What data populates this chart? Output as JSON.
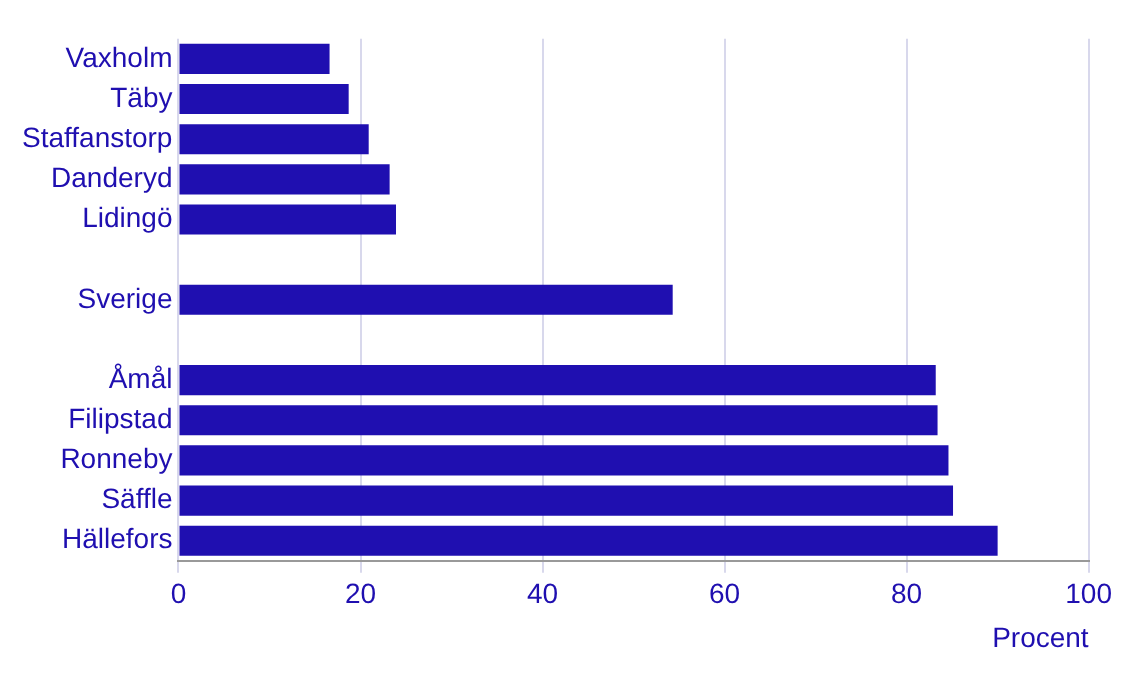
{
  "chart_data": {
    "type": "bar",
    "orientation": "horizontal",
    "categories": [
      "Vaxholm",
      "Täby",
      "Staffanstorp",
      "Danderyd",
      "Lidingö",
      null,
      "Sverige",
      null,
      "Åmål",
      "Filipstad",
      "Ronneby",
      "Säffle",
      "Hällefors"
    ],
    "values": [
      16.6,
      18.7,
      20.9,
      23.2,
      23.9,
      null,
      54.3,
      null,
      83.2,
      83.4,
      84.6,
      85.1,
      90.0
    ],
    "color": "#1f0fb0",
    "xlabel": "Procent",
    "xlim": [
      0,
      100
    ],
    "xticks": [
      0,
      20,
      40,
      60,
      80,
      100
    ],
    "grid": "x"
  }
}
